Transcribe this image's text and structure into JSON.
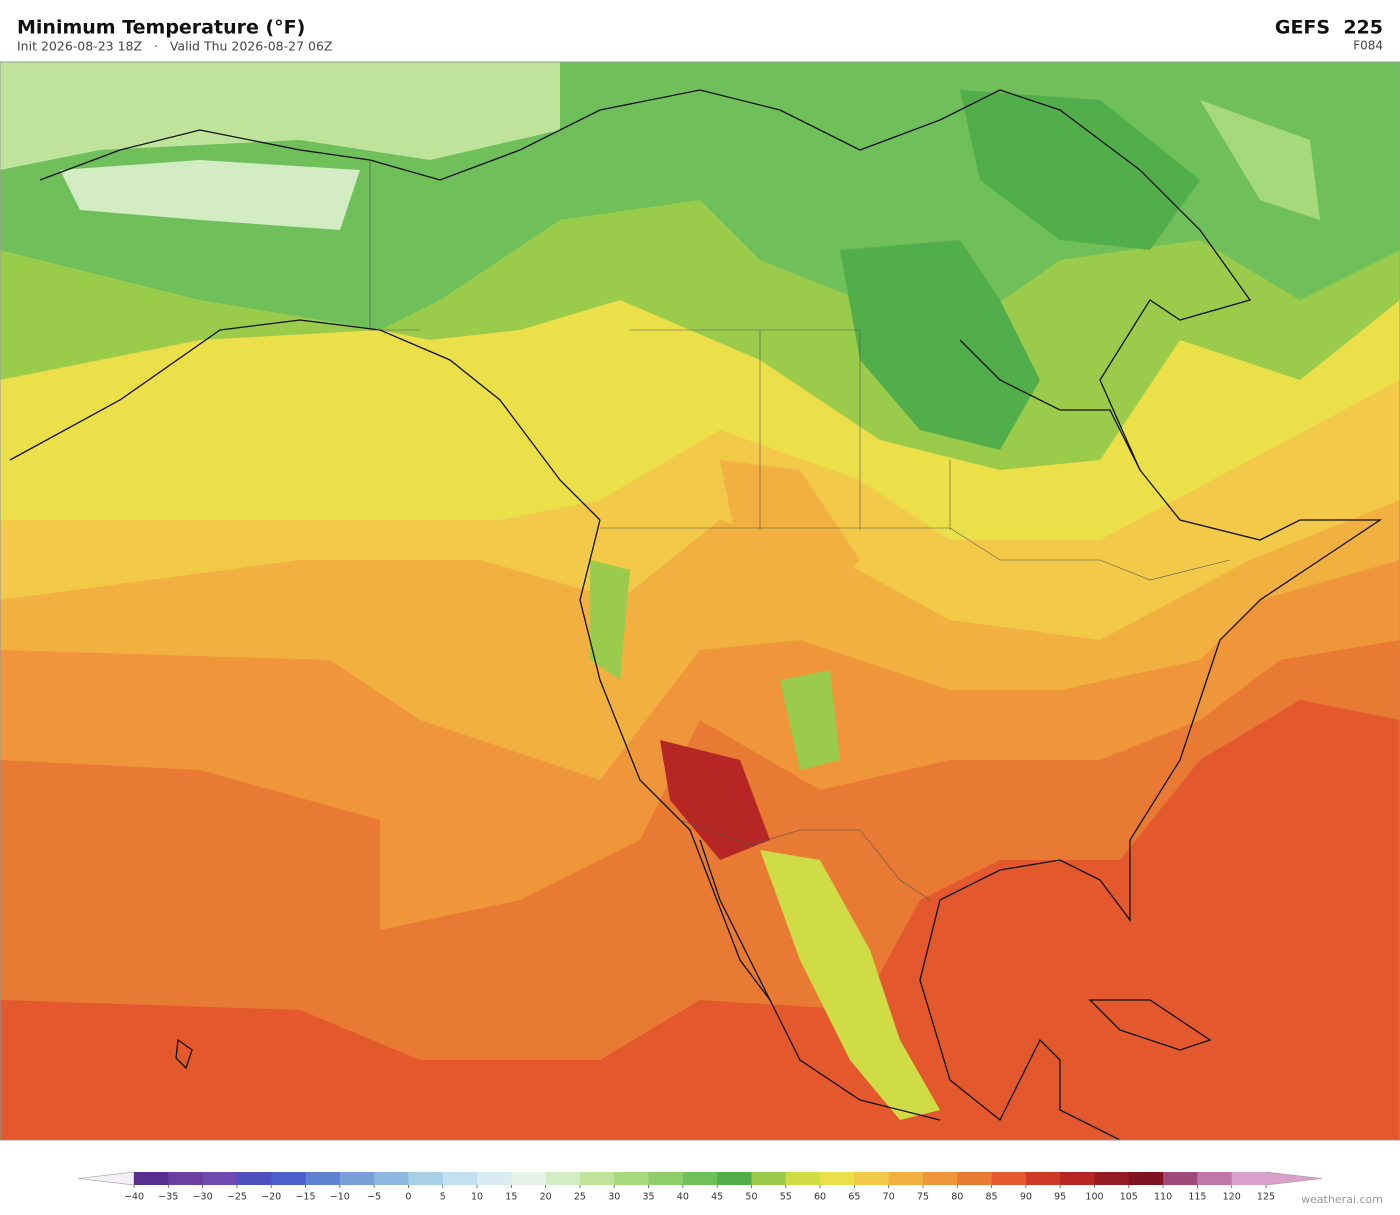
{
  "header": {
    "title": "Minimum Temperature  (°F)",
    "subtitle": "Init 2026-08-23 18Z   ·   Valid Thu 2026-08-27 06Z",
    "model": "GEFS  225",
    "forecast_hour": "F084"
  },
  "colorbar": {
    "ticks": [
      {
        "value": -40,
        "label": "−40"
      },
      {
        "value": -35,
        "label": "−35"
      },
      {
        "value": -30,
        "label": "−30"
      },
      {
        "value": -25,
        "label": "−25"
      },
      {
        "value": -20,
        "label": "−20"
      },
      {
        "value": -15,
        "label": "−15"
      },
      {
        "value": -10,
        "label": "−10"
      },
      {
        "value": -5,
        "label": "−5"
      },
      0,
      5,
      10,
      15,
      20,
      25,
      30,
      35,
      40,
      45,
      50,
      55,
      60,
      65,
      70,
      75,
      80,
      85,
      90,
      95,
      100,
      105,
      110,
      115,
      120,
      125
    ],
    "colors": [
      "#5a2d91",
      "#6a3fa0",
      "#6e4bb0",
      "#5050c0",
      "#4a5fcc",
      "#5f82d0",
      "#7a9fd8",
      "#8fb8e0",
      "#a8cfe8",
      "#c2e0ef",
      "#d8ecf2",
      "#e6f3e8",
      "#d4ecc4",
      "#bfe39a",
      "#a6d87c",
      "#8fcc6a",
      "#6fbf5a",
      "#52ae4a",
      "#9acb4a",
      "#cfdc45",
      "#ebe04a",
      "#f2c948",
      "#f2b040",
      "#ef963a",
      "#e97a33",
      "#e3582c",
      "#cf3a26",
      "#b52624",
      "#951a22",
      "#7d1420",
      "#a04a7a",
      "#c077a8",
      "#d9a0cc"
    ],
    "under_color": "#f4f0f8",
    "over_color": "#d9a0cc"
  },
  "watermark": "weatherai.com"
}
